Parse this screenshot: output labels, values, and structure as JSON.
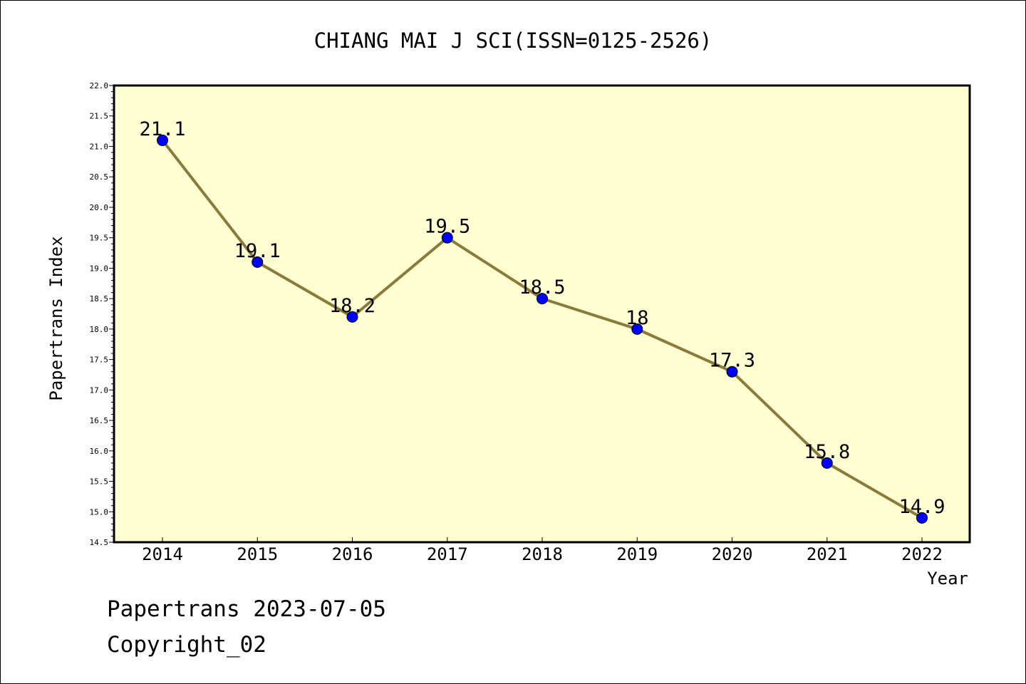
{
  "chart_data": {
    "type": "line",
    "title": "CHIANG MAI J SCI(ISSN=0125-2526)",
    "xlabel": "Year",
    "ylabel": "Papertrans Index",
    "ylim": [
      14.5,
      22.0
    ],
    "yticks": [
      "14.5",
      "15.0",
      "15.5",
      "16.0",
      "16.5",
      "17.0",
      "17.5",
      "18.0",
      "18.5",
      "19.0",
      "19.5",
      "20.0",
      "20.5",
      "21.0",
      "21.5",
      "22.0"
    ],
    "categories": [
      "2014",
      "2015",
      "2016",
      "2017",
      "2018",
      "2019",
      "2020",
      "2021",
      "2022"
    ],
    "values": [
      21.1,
      19.1,
      18.2,
      19.5,
      18.5,
      18.0,
      17.3,
      15.8,
      14.9
    ],
    "data_labels": [
      "21.1",
      "19.1",
      "18.2",
      "19.5",
      "18.5",
      "18",
      "17.3",
      "15.8",
      "14.9"
    ],
    "grid": false,
    "line_color": "#8c7a3a",
    "marker_color": "#0000ff",
    "plot_background": "#ffffd2"
  },
  "footer": {
    "line1": "Papertrans 2023-07-05",
    "line2": "Copyright_02"
  }
}
